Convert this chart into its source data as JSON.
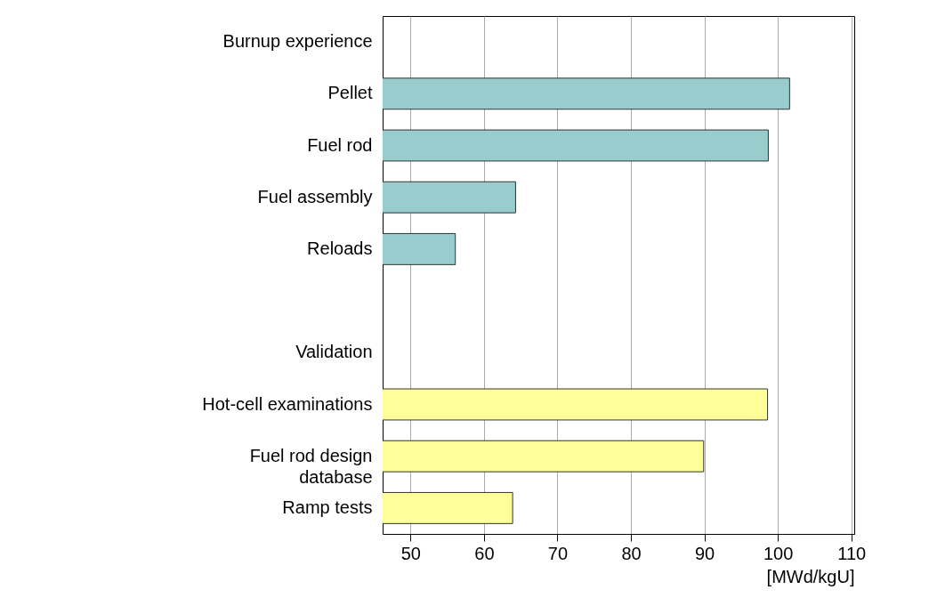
{
  "chart_data": {
    "type": "bar",
    "orientation": "horizontal",
    "categories": [
      "Burnup experience",
      "Pellet",
      "Fuel rod",
      "Fuel assembly",
      "Reloads",
      null,
      "Validation",
      "Hot-cell examinations",
      "Fuel rod design database",
      "Ramp tests"
    ],
    "values": [
      null,
      101.6,
      98.7,
      64.3,
      56.1,
      null,
      null,
      98.6,
      89.9,
      63.9
    ],
    "colors": [
      "#99cccc",
      "#99cccc",
      "#99cccc",
      "#99cccc",
      "#99cccc",
      "#99cccc",
      "#ffff99",
      "#ffff99",
      "#ffff99",
      "#ffff99"
    ],
    "xlabel": "[MWd/kgU]",
    "xlim": [
      46.2,
      110.4
    ],
    "xticks": [
      50,
      60,
      70,
      80,
      90,
      100,
      110
    ],
    "grid": "x"
  }
}
